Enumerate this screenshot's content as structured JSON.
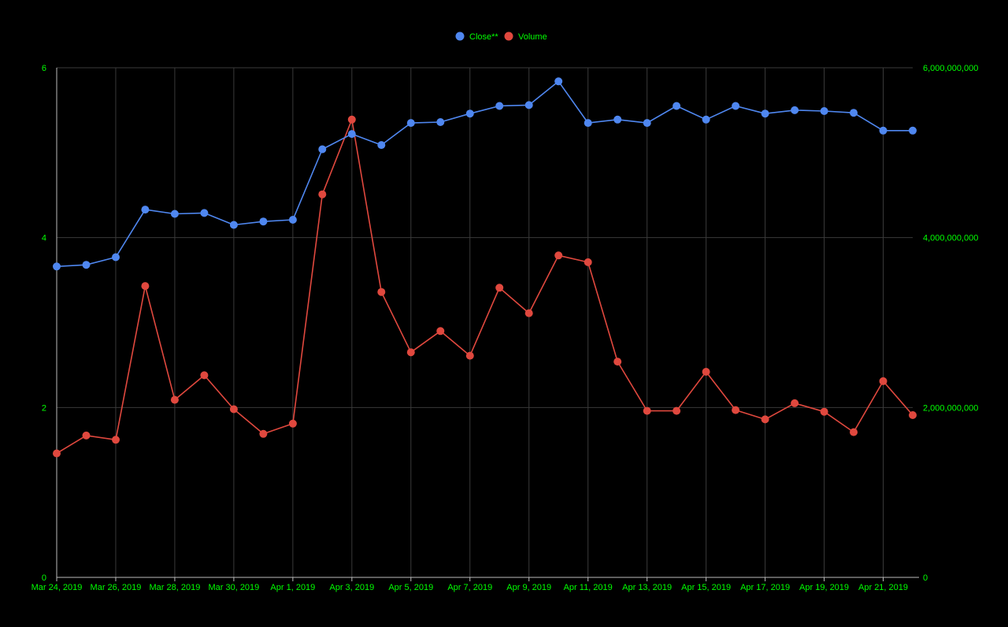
{
  "chart_data": {
    "type": "line",
    "x": [
      "Mar 24, 2019",
      "Mar 25, 2019",
      "Mar 26, 2019",
      "Mar 27, 2019",
      "Mar 28, 2019",
      "Mar 29, 2019",
      "Mar 30, 2019",
      "Mar 31, 2019",
      "Apr 1, 2019",
      "Apr 2, 2019",
      "Apr 3, 2019",
      "Apr 4, 2019",
      "Apr 5, 2019",
      "Apr 6, 2019",
      "Apr 7, 2019",
      "Apr 8, 2019",
      "Apr 9, 2019",
      "Apr 10, 2019",
      "Apr 11, 2019",
      "Apr 12, 2019",
      "Apr 13, 2019",
      "Apr 14, 2019",
      "Apr 15, 2019",
      "Apr 16, 2019",
      "Apr 17, 2019",
      "Apr 18, 2019",
      "Apr 19, 2019",
      "Apr 20, 2019",
      "Apr 21, 2019",
      "Apr 22, 2019"
    ],
    "x_tick_labels": [
      "Mar 24, 2019",
      "Mar 26, 2019",
      "Mar 28, 2019",
      "Mar 30, 2019",
      "Apr 1, 2019",
      "Apr 3, 2019",
      "Apr 5, 2019",
      "Apr 7, 2019",
      "Apr 9, 2019",
      "Apr 11, 2019",
      "Apr 13, 2019",
      "Apr 15, 2019",
      "Apr 17, 2019",
      "Apr 19, 2019",
      "Apr 21, 2019"
    ],
    "series": [
      {
        "name": "Close**",
        "axis": "left",
        "color": "#4f87f0",
        "values": [
          3.66,
          3.68,
          3.77,
          4.33,
          4.28,
          4.29,
          4.15,
          4.19,
          4.21,
          5.04,
          5.22,
          5.09,
          5.35,
          5.36,
          5.46,
          5.55,
          5.56,
          5.84,
          5.35,
          5.39,
          5.35,
          5.55,
          5.39,
          5.55,
          5.46,
          5.5,
          5.49,
          5.47,
          5.26,
          5.26
        ]
      },
      {
        "name": "Volume",
        "axis": "right",
        "color": "#e0483e",
        "values": [
          1460000000,
          1670000000,
          1620000000,
          3430000000,
          2090000000,
          2380000000,
          1980000000,
          1690000000,
          1810000000,
          4510000000,
          5390000000,
          3360000000,
          2650000000,
          2900000000,
          2610000000,
          3410000000,
          3110000000,
          3790000000,
          3710000000,
          2540000000,
          1960000000,
          1960000000,
          2420000000,
          1970000000,
          1860000000,
          2050000000,
          1950000000,
          1710000000,
          2310000000,
          1910000000
        ]
      }
    ],
    "y_left": {
      "min": 0,
      "max": 6,
      "ticks": [
        0,
        2,
        4,
        6
      ],
      "tick_labels": [
        "0",
        "2",
        "4",
        "6"
      ]
    },
    "y_right": {
      "min": 0,
      "max": 6000000000,
      "ticks": [
        0,
        2000000000,
        4000000000,
        6000000000
      ],
      "tick_labels": [
        "0",
        "2,000,000,000",
        "4,000,000,000",
        "6,000,000,000"
      ]
    },
    "legend_position": "top-center",
    "grid": true,
    "colors": {
      "background": "#000000",
      "grid": "#3a3a3a",
      "axis": "#bdbdbd",
      "tick_text": "#00ff00",
      "legend_text": "#00ff00"
    }
  }
}
